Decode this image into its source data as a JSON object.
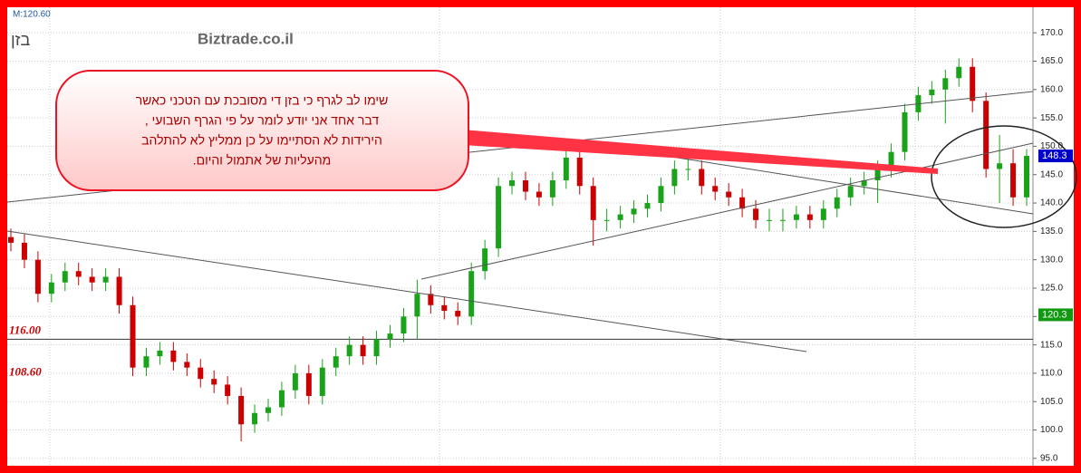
{
  "chart_data": {
    "type": "candlestick",
    "title": "בזן",
    "watermark": "Biztrade.co.il",
    "info": "M:120.60",
    "ylim": [
      93.7,
      174.5
    ],
    "yticks": [
      {
        "value": 95,
        "label": "95.0"
      },
      {
        "value": 100,
        "label": "100.0"
      },
      {
        "value": 105,
        "label": "105.0"
      },
      {
        "value": 110,
        "label": "110.0"
      },
      {
        "value": 115,
        "label": "115.0"
      },
      {
        "value": 120,
        "label": "120.0"
      },
      {
        "value": 125,
        "label": "125.0"
      },
      {
        "value": 130,
        "label": "130.0"
      },
      {
        "value": 135,
        "label": "135.0"
      },
      {
        "value": 140,
        "label": "140.0"
      },
      {
        "value": 145,
        "label": "145.0"
      },
      {
        "value": 150,
        "label": "150.0"
      },
      {
        "value": 155,
        "label": "155.0"
      },
      {
        "value": 160,
        "label": "160.0"
      },
      {
        "value": 165,
        "label": "165.0"
      },
      {
        "value": 170,
        "label": "170.0"
      }
    ],
    "grid": true,
    "up_color": "#1aa31a",
    "down_color": "#cc0000",
    "series": {
      "open": [
        134,
        133,
        130,
        124,
        126,
        128,
        127,
        126,
        127,
        122,
        111,
        113,
        114,
        112,
        111,
        109,
        108,
        106,
        101,
        103,
        104,
        107,
        110,
        106,
        111,
        113,
        115,
        113,
        116,
        117,
        120,
        124,
        122,
        121,
        120,
        128,
        132,
        143,
        144,
        142,
        141,
        144,
        148,
        143,
        137,
        137,
        138,
        139,
        140,
        143,
        146,
        146,
        143,
        142,
        141,
        139,
        137,
        137,
        137,
        138,
        137,
        139,
        141,
        143,
        144,
        146,
        149,
        156,
        159,
        160,
        162,
        164,
        158,
        146,
        147,
        141
      ],
      "high": [
        135.5,
        134.5,
        131.5,
        127.5,
        129.5,
        129.5,
        128.5,
        128.5,
        128.5,
        123.5,
        114.5,
        115.5,
        115.5,
        113.5,
        112.5,
        110.5,
        109.5,
        107.5,
        104.5,
        105.5,
        108.5,
        111.5,
        111.5,
        112.5,
        114.5,
        116.5,
        116.5,
        117.5,
        118.5,
        121.5,
        126.5,
        125.5,
        123.5,
        122.5,
        129.5,
        133.5,
        144.5,
        145.5,
        145.5,
        143.5,
        145.5,
        150,
        149.5,
        144.5,
        139,
        139.5,
        140.5,
        141.5,
        144.5,
        147.5,
        148,
        147.5,
        144.5,
        143.5,
        142.5,
        140.5,
        139,
        139,
        139.5,
        139.5,
        140.5,
        142.5,
        144.5,
        145.5,
        147.5,
        150.5,
        157.5,
        160.5,
        161.5,
        163.5,
        165.5,
        165.5,
        159.5,
        152,
        149.5,
        149.5
      ],
      "low": [
        131.5,
        128.5,
        122.5,
        122.5,
        124.5,
        125.5,
        124.5,
        124.5,
        120.5,
        109.5,
        109.5,
        111.5,
        110.5,
        109.5,
        107.5,
        106.5,
        104.5,
        98,
        99.5,
        101.5,
        102.5,
        105.5,
        104.5,
        104.5,
        109.5,
        111.5,
        111.5,
        111.5,
        114.5,
        115.5,
        116,
        120.5,
        119.5,
        118.5,
        118.5,
        126.5,
        130.5,
        141.5,
        140.5,
        139.5,
        139.5,
        142.5,
        141.5,
        132.5,
        135,
        135.5,
        136.5,
        137.5,
        138.5,
        141.5,
        144,
        141.5,
        140.5,
        139.5,
        137.5,
        135.5,
        135,
        135,
        135.5,
        135.5,
        135.5,
        137.5,
        139.5,
        141.5,
        140,
        144.5,
        147.5,
        154.5,
        157.5,
        154,
        160.5,
        156,
        144.5,
        140,
        139.5,
        139.5
      ],
      "close": [
        133,
        130,
        124,
        126,
        128,
        127,
        126,
        127,
        122,
        111,
        113,
        114,
        112,
        111,
        109,
        108,
        106,
        101,
        103,
        104,
        107,
        110,
        106,
        111,
        113,
        115,
        113,
        116,
        117,
        120,
        124,
        122,
        121,
        120,
        128,
        132,
        143,
        144,
        142,
        141,
        144,
        148,
        143,
        137,
        137,
        138,
        139,
        140,
        143,
        146,
        146,
        143,
        142,
        141,
        139,
        137,
        137,
        137,
        138,
        137,
        139,
        141,
        143,
        144,
        146,
        149,
        156,
        159,
        160,
        162,
        164,
        158,
        146,
        147,
        141,
        148.3
      ]
    },
    "levels": [
      {
        "value": 116,
        "label": "116.00",
        "line": true
      },
      {
        "value": 108.6,
        "label": "108.60",
        "line": false
      }
    ],
    "price_tags": [
      {
        "value": 148.3,
        "label": "148.3",
        "color": "#0000cc"
      },
      {
        "value": 120.3,
        "label": "120.3",
        "color": "#119911"
      }
    ],
    "annotation": {
      "lines": [
        "שימו לב לגרף כי בזן  די מסובכת עם הטכני כאשר",
        "דבר אחד אני יודע לומר על פי הגרף השבועי ,",
        "הירידות לא הסתיימו על כן ממליץ לא להתלהב",
        "מהעליות של אתמול והיום."
      ]
    }
  }
}
